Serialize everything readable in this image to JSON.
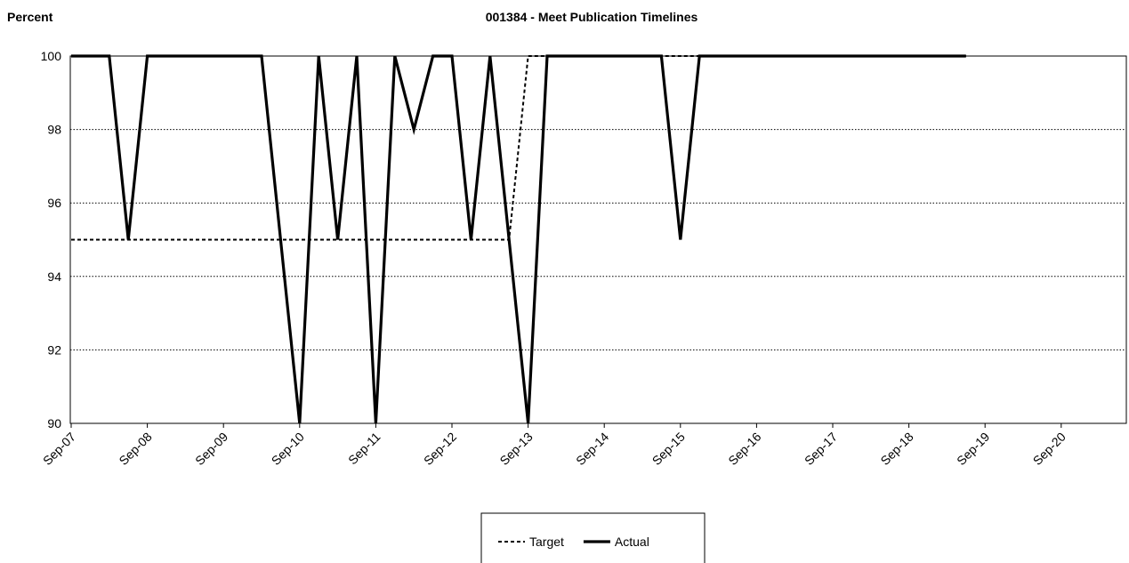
{
  "chart_data": {
    "type": "line",
    "title": "001384 - Meet Publication Timelines",
    "y_label": "Percent",
    "categories": [
      "Sep-07",
      null,
      null,
      null,
      "Sep-08",
      null,
      null,
      null,
      "Sep-09",
      null,
      null,
      null,
      "Sep-10",
      null,
      null,
      null,
      "Sep-11",
      null,
      null,
      null,
      "Sep-12",
      null,
      null,
      null,
      "Sep-13",
      null,
      null,
      null,
      "Sep-14",
      null,
      null,
      null,
      "Sep-15",
      null,
      null,
      null,
      "Sep-16",
      null,
      null,
      null,
      "Sep-17",
      null,
      null,
      null,
      "Sep-18",
      null,
      null,
      null,
      "Sep-19",
      null,
      null,
      null,
      "Sep-20",
      null,
      null,
      null
    ],
    "series": [
      {
        "name": "Target",
        "color": "#000000",
        "dash": true,
        "values": [
          95,
          95,
          95,
          95,
          95,
          95,
          95,
          95,
          95,
          95,
          95,
          95,
          95,
          95,
          95,
          95,
          95,
          95,
          95,
          95,
          95,
          95,
          95,
          95,
          100,
          100,
          100,
          100,
          100,
          100,
          100,
          100,
          100,
          100,
          100,
          100,
          100,
          100,
          100,
          100,
          100,
          100,
          100,
          100,
          100,
          100,
          100,
          100,
          null,
          null,
          null,
          null,
          null,
          null,
          null,
          null
        ]
      },
      {
        "name": "Actual",
        "color": "#000000",
        "dash": false,
        "values": [
          100,
          100,
          100,
          95,
          100,
          100,
          100,
          100,
          100,
          100,
          100,
          95,
          90,
          100,
          95,
          100,
          90,
          100,
          98,
          100,
          100,
          95,
          100,
          95,
          90,
          100,
          100,
          100,
          100,
          100,
          100,
          100,
          95,
          100,
          100,
          100,
          100,
          100,
          100,
          100,
          100,
          100,
          100,
          100,
          100,
          100,
          100,
          100,
          null,
          null,
          null,
          null,
          null,
          null,
          null,
          null
        ]
      }
    ],
    "ylim": [
      90,
      100
    ],
    "yticks": [
      90,
      92,
      94,
      96,
      98,
      100
    ],
    "grid": true,
    "legend": "bottom"
  }
}
